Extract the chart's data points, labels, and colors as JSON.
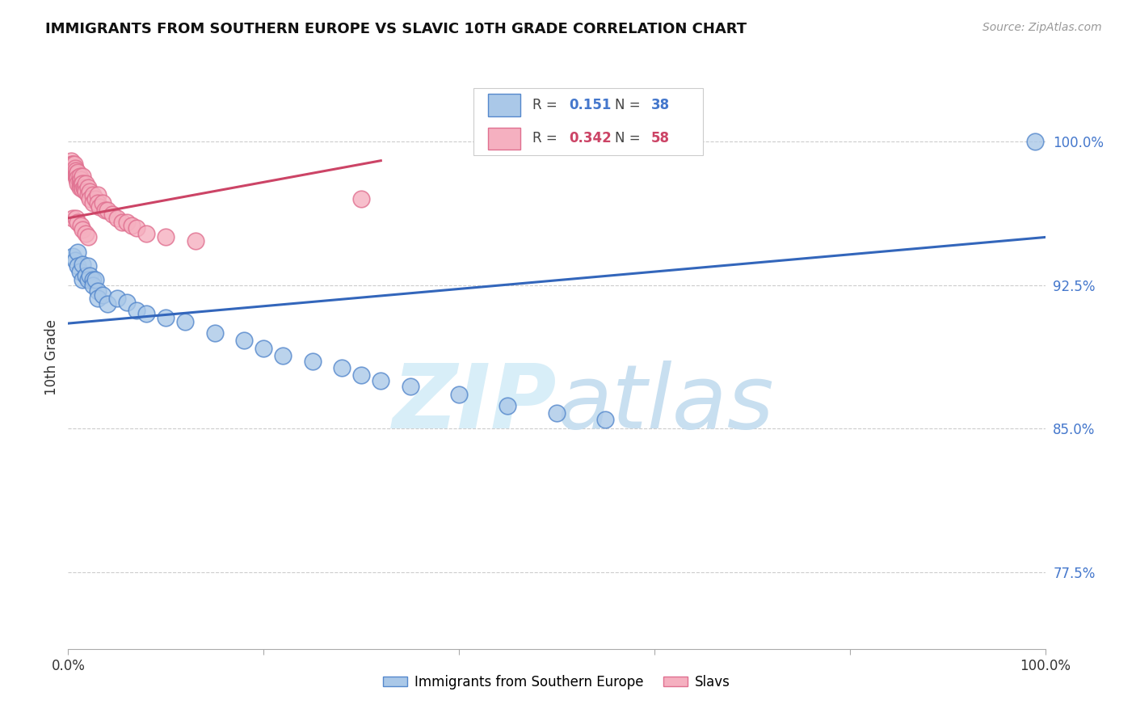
{
  "title": "IMMIGRANTS FROM SOUTHERN EUROPE VS SLAVIC 10TH GRADE CORRELATION CHART",
  "source": "Source: ZipAtlas.com",
  "ylabel": "10th Grade",
  "ytick_labels": [
    "100.0%",
    "92.5%",
    "85.0%",
    "77.5%"
  ],
  "ytick_values": [
    1.0,
    0.925,
    0.85,
    0.775
  ],
  "xlim": [
    0.0,
    1.0
  ],
  "ylim": [
    0.735,
    1.04
  ],
  "legend_r_blue": "0.151",
  "legend_n_blue": "38",
  "legend_r_pink": "0.342",
  "legend_n_pink": "58",
  "legend_label_blue": "Immigrants from Southern Europe",
  "legend_label_pink": "Slavs",
  "blue_color": "#aac8e8",
  "pink_color": "#f5b0c0",
  "blue_edge_color": "#5588cc",
  "pink_edge_color": "#e07090",
  "blue_line_color": "#3366bb",
  "pink_line_color": "#cc4466",
  "blue_tick_color": "#4477cc",
  "watermark_color": "#d8eef8",
  "blue_line_start_y": 0.905,
  "blue_line_end_y": 0.95,
  "pink_line_start_y": 0.96,
  "pink_line_end_x": 0.32,
  "pink_line_end_y": 0.99,
  "blue_scatter_x": [
    0.005,
    0.007,
    0.01,
    0.01,
    0.012,
    0.015,
    0.015,
    0.018,
    0.02,
    0.02,
    0.022,
    0.025,
    0.025,
    0.028,
    0.03,
    0.03,
    0.035,
    0.04,
    0.05,
    0.06,
    0.07,
    0.08,
    0.1,
    0.12,
    0.15,
    0.18,
    0.2,
    0.22,
    0.25,
    0.28,
    0.3,
    0.32,
    0.35,
    0.4,
    0.45,
    0.5,
    0.55,
    0.99
  ],
  "blue_scatter_y": [
    0.94,
    0.938,
    0.942,
    0.935,
    0.932,
    0.936,
    0.928,
    0.93,
    0.935,
    0.928,
    0.93,
    0.928,
    0.925,
    0.928,
    0.922,
    0.918,
    0.92,
    0.915,
    0.918,
    0.916,
    0.912,
    0.91,
    0.908,
    0.906,
    0.9,
    0.896,
    0.892,
    0.888,
    0.885,
    0.882,
    0.878,
    0.875,
    0.872,
    0.868,
    0.862,
    0.858,
    0.855,
    1.0
  ],
  "pink_scatter_x": [
    0.003,
    0.004,
    0.005,
    0.005,
    0.006,
    0.006,
    0.007,
    0.007,
    0.008,
    0.008,
    0.009,
    0.009,
    0.01,
    0.01,
    0.01,
    0.012,
    0.012,
    0.012,
    0.013,
    0.013,
    0.014,
    0.015,
    0.015,
    0.015,
    0.016,
    0.017,
    0.018,
    0.018,
    0.02,
    0.02,
    0.022,
    0.022,
    0.025,
    0.025,
    0.028,
    0.03,
    0.03,
    0.032,
    0.035,
    0.038,
    0.04,
    0.045,
    0.05,
    0.055,
    0.06,
    0.065,
    0.07,
    0.08,
    0.1,
    0.13,
    0.005,
    0.008,
    0.01,
    0.013,
    0.015,
    0.018,
    0.02,
    0.3
  ],
  "pink_scatter_y": [
    0.99,
    0.988,
    0.988,
    0.985,
    0.988,
    0.985,
    0.986,
    0.983,
    0.985,
    0.982,
    0.983,
    0.98,
    0.984,
    0.981,
    0.978,
    0.982,
    0.979,
    0.976,
    0.98,
    0.977,
    0.978,
    0.982,
    0.978,
    0.975,
    0.976,
    0.975,
    0.978,
    0.974,
    0.976,
    0.972,
    0.974,
    0.97,
    0.972,
    0.968,
    0.97,
    0.972,
    0.968,
    0.966,
    0.968,
    0.964,
    0.964,
    0.962,
    0.96,
    0.958,
    0.958,
    0.956,
    0.955,
    0.952,
    0.95,
    0.948,
    0.96,
    0.96,
    0.958,
    0.956,
    0.954,
    0.952,
    0.95,
    0.97
  ]
}
